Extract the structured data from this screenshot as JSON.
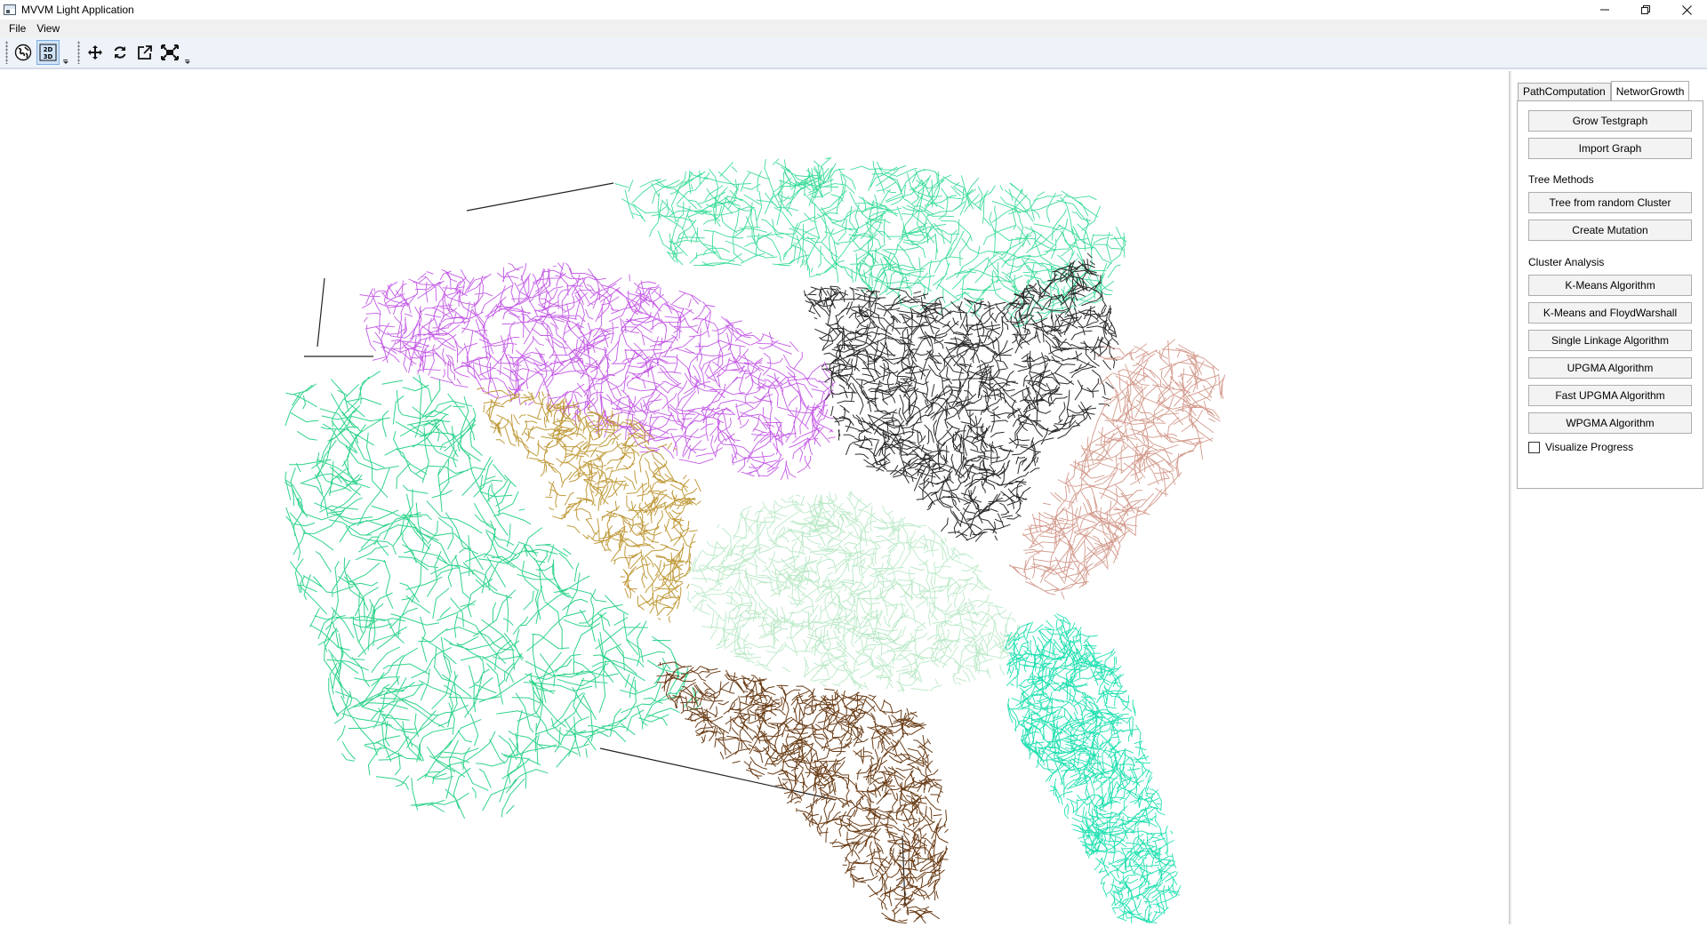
{
  "window": {
    "title": "MVVM Light Application",
    "controls": [
      "minimize",
      "restore",
      "close"
    ]
  },
  "menu": {
    "file_label": "File",
    "view_label": "View"
  },
  "toolbar": {
    "buttons": [
      {
        "icon": "globe-icon",
        "checked": false
      },
      {
        "icon": "2d-3d-toggle-icon",
        "checked": true
      },
      {
        "icon": "pan-move-icon",
        "checked": false
      },
      {
        "icon": "rotate-icon",
        "checked": false
      },
      {
        "icon": "external-open-icon",
        "checked": false
      },
      {
        "icon": "fit-extent-icon",
        "checked": false
      }
    ]
  },
  "panel": {
    "tabs": [
      {
        "label": "PathComputation",
        "active": false
      },
      {
        "label": "NetworGrowth",
        "active": true
      }
    ],
    "grow_testgraph": "Grow Testgraph",
    "import_graph": "Import Graph",
    "tree_methods_label": "Tree Methods",
    "tree_from_random_cluster": "Tree from random Cluster",
    "create_mutation": "Create Mutation",
    "cluster_analysis_label": "Cluster Analysis",
    "kmeans": "K-Means Algorithm",
    "kmeans_floyd": "K-Means and FloydWarshall",
    "single_linkage": "Single Linkage Algorithm",
    "upgma": "UPGMA Algorithm",
    "fast_upgma": "Fast UPGMA Algorithm",
    "wpgma": "WPGMA Algorithm",
    "visualize_progress": "Visualize Progress",
    "visualize_progress_checked": false
  },
  "map": {
    "clusters": [
      {
        "name": "green-outer",
        "color": "#2fd38c"
      },
      {
        "name": "teal-north",
        "color": "#3ddc9a"
      },
      {
        "name": "violet",
        "color": "#c45be6"
      },
      {
        "name": "gold",
        "color": "#c09a3a"
      },
      {
        "name": "dark-core",
        "color": "#2b2b2b"
      },
      {
        "name": "rose",
        "color": "#d39a8c"
      },
      {
        "name": "pale-green",
        "color": "#b9e9c6"
      },
      {
        "name": "brown",
        "color": "#6b3e18"
      },
      {
        "name": "aqua-southeast",
        "color": "#20e0b0"
      }
    ]
  }
}
